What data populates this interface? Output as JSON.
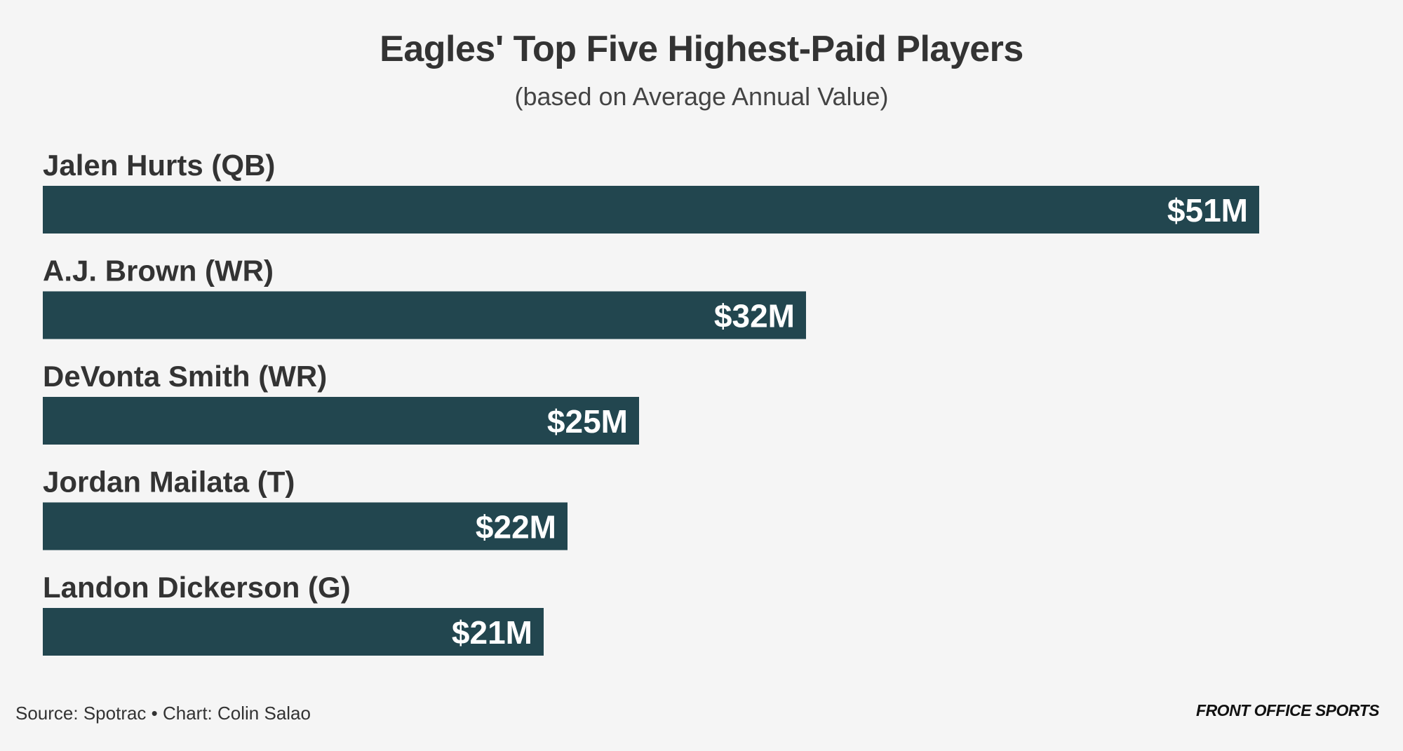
{
  "chart_data": {
    "type": "bar",
    "orientation": "horizontal",
    "title": "Eagles' Top Five Highest-Paid Players",
    "subtitle": "(based on Average Annual Value)",
    "categories": [
      "Jalen Hurts (QB)",
      "A.J. Brown (WR)",
      "DeVonta Smith (WR)",
      "Jordan Mailata (T)",
      "Landon Dickerson (G)"
    ],
    "values": [
      51,
      32,
      25,
      22,
      21
    ],
    "value_labels": [
      "$51M",
      "$32M",
      "$25M",
      "$22M",
      "$21M"
    ],
    "unit": "$M",
    "grid": false,
    "legend": "none",
    "bar_color": "#22464f",
    "label_color": "#ffffff"
  },
  "footer": {
    "source": "Source: Spotrac • Chart: Colin Salao",
    "brand": "FRONT OFFICE SPORTS"
  }
}
